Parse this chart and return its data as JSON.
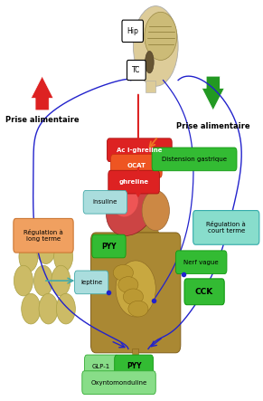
{
  "bg_color": "#ffffff",
  "labels": {
    "hip": "Hip",
    "tc": "TC",
    "prise_up": "Prise alimentaire",
    "prise_down": "Prise alimentaire",
    "acyl_ghrelline": "Ac l-ghreline",
    "ocat": "OCAT",
    "ghrelline": "ghreline",
    "distension": "Distension gastrique",
    "reg_long": "Régulation à\nlong terme",
    "reg_court": "Régulation à\ncourt terme",
    "insuline": "insuline",
    "pyy_top": "PYY",
    "leptine": "leptine",
    "nerf_vague": "Nerf vague",
    "cck": "CCK",
    "glp1": "GLP-1",
    "pyy_bot": "PYY",
    "oxynto": "Oxyntomonduline"
  },
  "colors": {
    "red_arrow": "#dd2222",
    "green_arrow": "#229922",
    "red_box": "#dd2222",
    "green_box": "#33bb33",
    "green_box2": "#44cc44",
    "orange_box": "#ee7722",
    "cyan_box": "#88ddcc",
    "blue_arrow": "#2222cc",
    "orange_arrow": "#ee7722",
    "liver_color": "#cc4444",
    "stomach_color": "#cc8844",
    "intestine_color": "#aa8833",
    "fat_color": "#ccbb66",
    "brain_color": "#ccbb77",
    "brainstem_color": "#665533",
    "head_color": "#ddcc99"
  }
}
